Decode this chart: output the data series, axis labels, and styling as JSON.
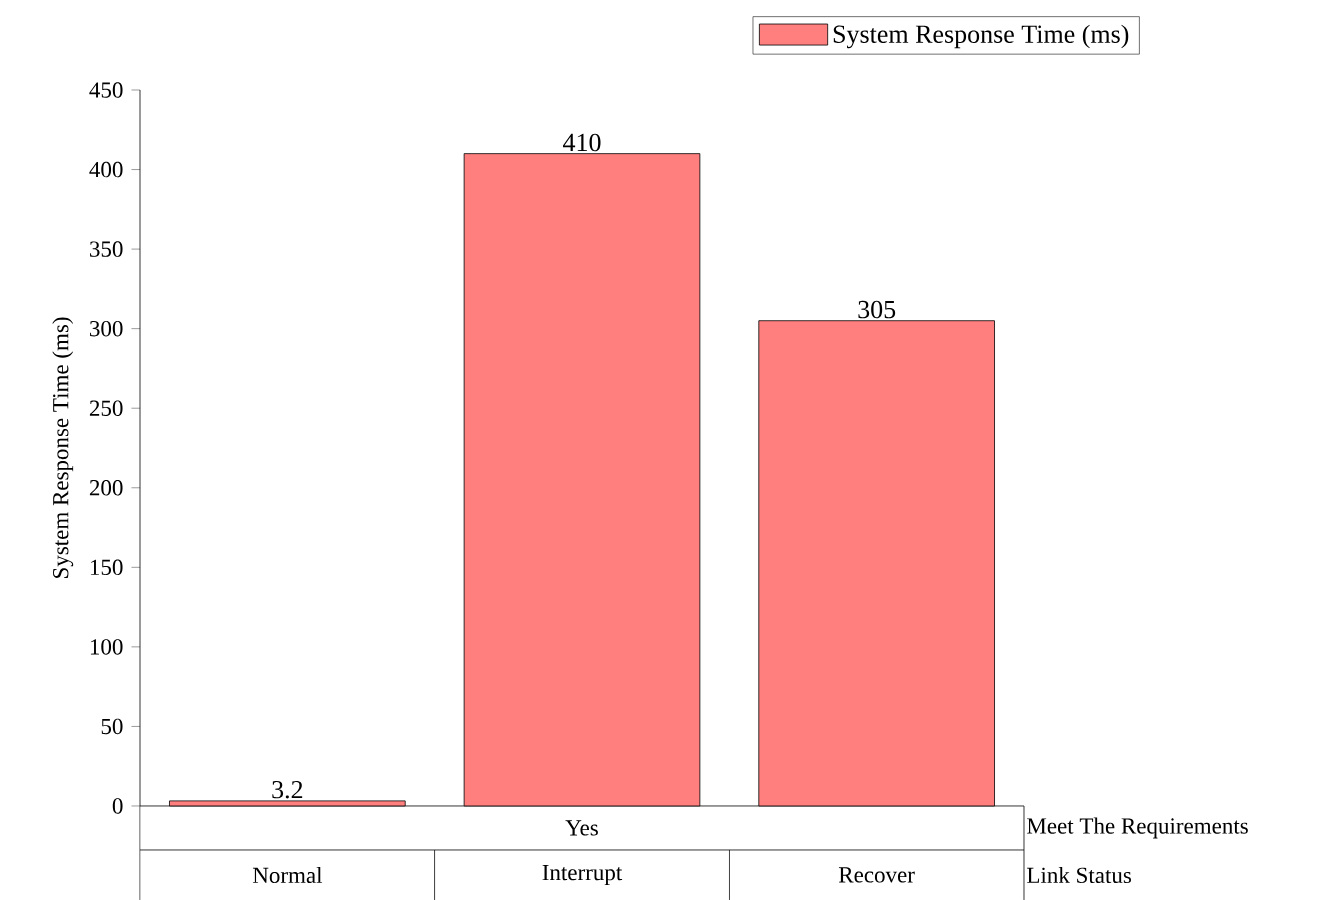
{
  "chart_data": {
    "type": "bar",
    "categories": [
      "Normal",
      "Interrupt",
      "Recover"
    ],
    "series": [
      {
        "name": "System Response Time (ms)",
        "color": "#ff7f7f",
        "values": [
          3.2,
          410,
          305
        ]
      }
    ],
    "ylabel": "System Response Time (ms)",
    "xlabel": "Link Status",
    "annotations": [
      "Yes",
      "Meet The Requirements"
    ],
    "ylim": [
      0,
      450
    ],
    "yticks": [
      0,
      50,
      100,
      150,
      200,
      250,
      300,
      350,
      400,
      450
    ],
    "data_labels": true,
    "legend": "top right",
    "grid": false
  }
}
